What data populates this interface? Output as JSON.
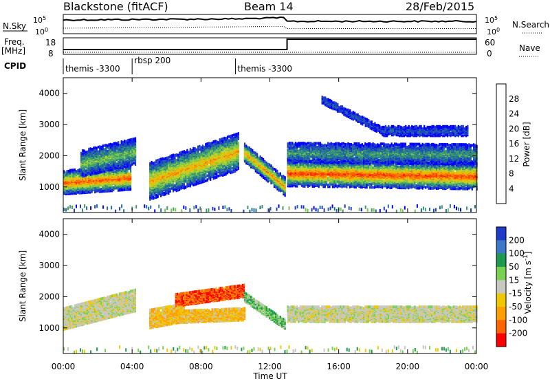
{
  "header": {
    "title": "Blackstone (fitACF)",
    "beam": "Beam 14",
    "date": "28/Feb/2015"
  },
  "top_panels": {
    "nsky": {
      "label": "N.Sky",
      "ticks": [
        "10^5",
        "10^0"
      ]
    },
    "nsearch": {
      "label": "N.Search",
      "ticks": [
        "10^5",
        "10^0"
      ]
    },
    "freq": {
      "label_line1": "Freq.",
      "label_line2": "[MHz]",
      "ticks": [
        "18",
        "8"
      ]
    },
    "nave": {
      "label": "Nave",
      "ticks": [
        "60",
        "0"
      ]
    },
    "freq_step_hour": 13
  },
  "cpid": {
    "label": "CPID",
    "segments": [
      {
        "start_hour": 0,
        "name": "themis -3300"
      },
      {
        "start_hour": 4,
        "name": "rbsp 200"
      },
      {
        "start_hour": 10,
        "name": "themis -3300"
      }
    ]
  },
  "chart_data": [
    {
      "type": "heatmap",
      "panel": "power",
      "ylabel": "Slant Range [km]",
      "ylim": [
        180,
        4500
      ],
      "xlim": [
        0,
        24
      ],
      "yticks": [
        1000,
        2000,
        3000,
        4000
      ],
      "colorbar": {
        "label": "Power [dB]",
        "ticks": [
          "4",
          "8",
          "12",
          "16",
          "20",
          "24",
          "28"
        ],
        "colors": [
          "#0000ff",
          "#1e3cc8",
          "#1e6e9a",
          "#3c9a6e",
          "#78c850",
          "#c8d21e",
          "#f0b400",
          "#ff7800",
          "#ff3c00",
          "#ff0000"
        ]
      },
      "bands": [
        {
          "t0": 0.0,
          "t1": 3.9,
          "center": [
            1150,
            1300
          ],
          "width": 380,
          "intensity": 0.85
        },
        {
          "t0": 1.0,
          "t1": 4.2,
          "center": [
            1750,
            2150
          ],
          "width": 420,
          "intensity": 0.45
        },
        {
          "t0": 5.0,
          "t1": 10.2,
          "center": [
            1200,
            2150
          ],
          "width": 600,
          "intensity": 0.7
        },
        {
          "t0": 10.5,
          "t1": 12.9,
          "center": [
            2100,
            1000
          ],
          "width": 300,
          "intensity": 0.75
        },
        {
          "t0": 13.0,
          "t1": 24.0,
          "center": [
            1450,
            1350
          ],
          "width": 420,
          "intensity": 0.9
        },
        {
          "t0": 13.0,
          "t1": 24.0,
          "center": [
            2100,
            2050
          ],
          "width": 320,
          "intensity": 0.35
        },
        {
          "t0": 15.0,
          "t1": 18.5,
          "center": [
            3800,
            2800
          ],
          "width": 120,
          "intensity": 0.15
        },
        {
          "t0": 18.5,
          "t1": 23.5,
          "center": [
            2800,
            2800
          ],
          "width": 160,
          "intensity": 0.15
        }
      ]
    },
    {
      "type": "heatmap",
      "panel": "velocity",
      "ylabel": "Slant Range [km]",
      "ylim": [
        180,
        4500
      ],
      "xlim": [
        0,
        24
      ],
      "yticks": [
        1000,
        2000,
        3000,
        4000
      ],
      "xticks": [
        "00:00",
        "04:00",
        "08:00",
        "12:00",
        "16:00",
        "20:00",
        "00:00"
      ],
      "xlabel": "Time UT",
      "colorbar": {
        "label": "Velocity [m s^-1]",
        "ticks": [
          "200",
          "100",
          "50",
          "15",
          "-15",
          "-50",
          "-100",
          "-200"
        ],
        "colors": [
          "#1e3cc8",
          "#3c78c8",
          "#1e9a50",
          "#78d250",
          "#c8c8c0",
          "#f0c800",
          "#ffa000",
          "#ff6400",
          "#ff0000"
        ]
      },
      "bands": [
        {
          "t0": 0.0,
          "t1": 4.2,
          "center": [
            1300,
            1900
          ],
          "width": 700,
          "kind": "gray"
        },
        {
          "t0": 5.0,
          "t1": 7.0,
          "center": [
            1300,
            1500
          ],
          "width": 600,
          "kind": "yellow"
        },
        {
          "t0": 6.5,
          "t1": 10.5,
          "center": [
            1900,
            2200
          ],
          "width": 400,
          "kind": "red"
        },
        {
          "t0": 6.0,
          "t1": 10.5,
          "center": [
            1350,
            1450
          ],
          "width": 400,
          "kind": "yellow"
        },
        {
          "t0": 10.5,
          "t1": 12.9,
          "center": [
            2000,
            1100
          ],
          "width": 300,
          "kind": "green"
        },
        {
          "t0": 13.0,
          "t1": 24.0,
          "center": [
            1450,
            1450
          ],
          "width": 500,
          "kind": "gray"
        }
      ]
    }
  ]
}
